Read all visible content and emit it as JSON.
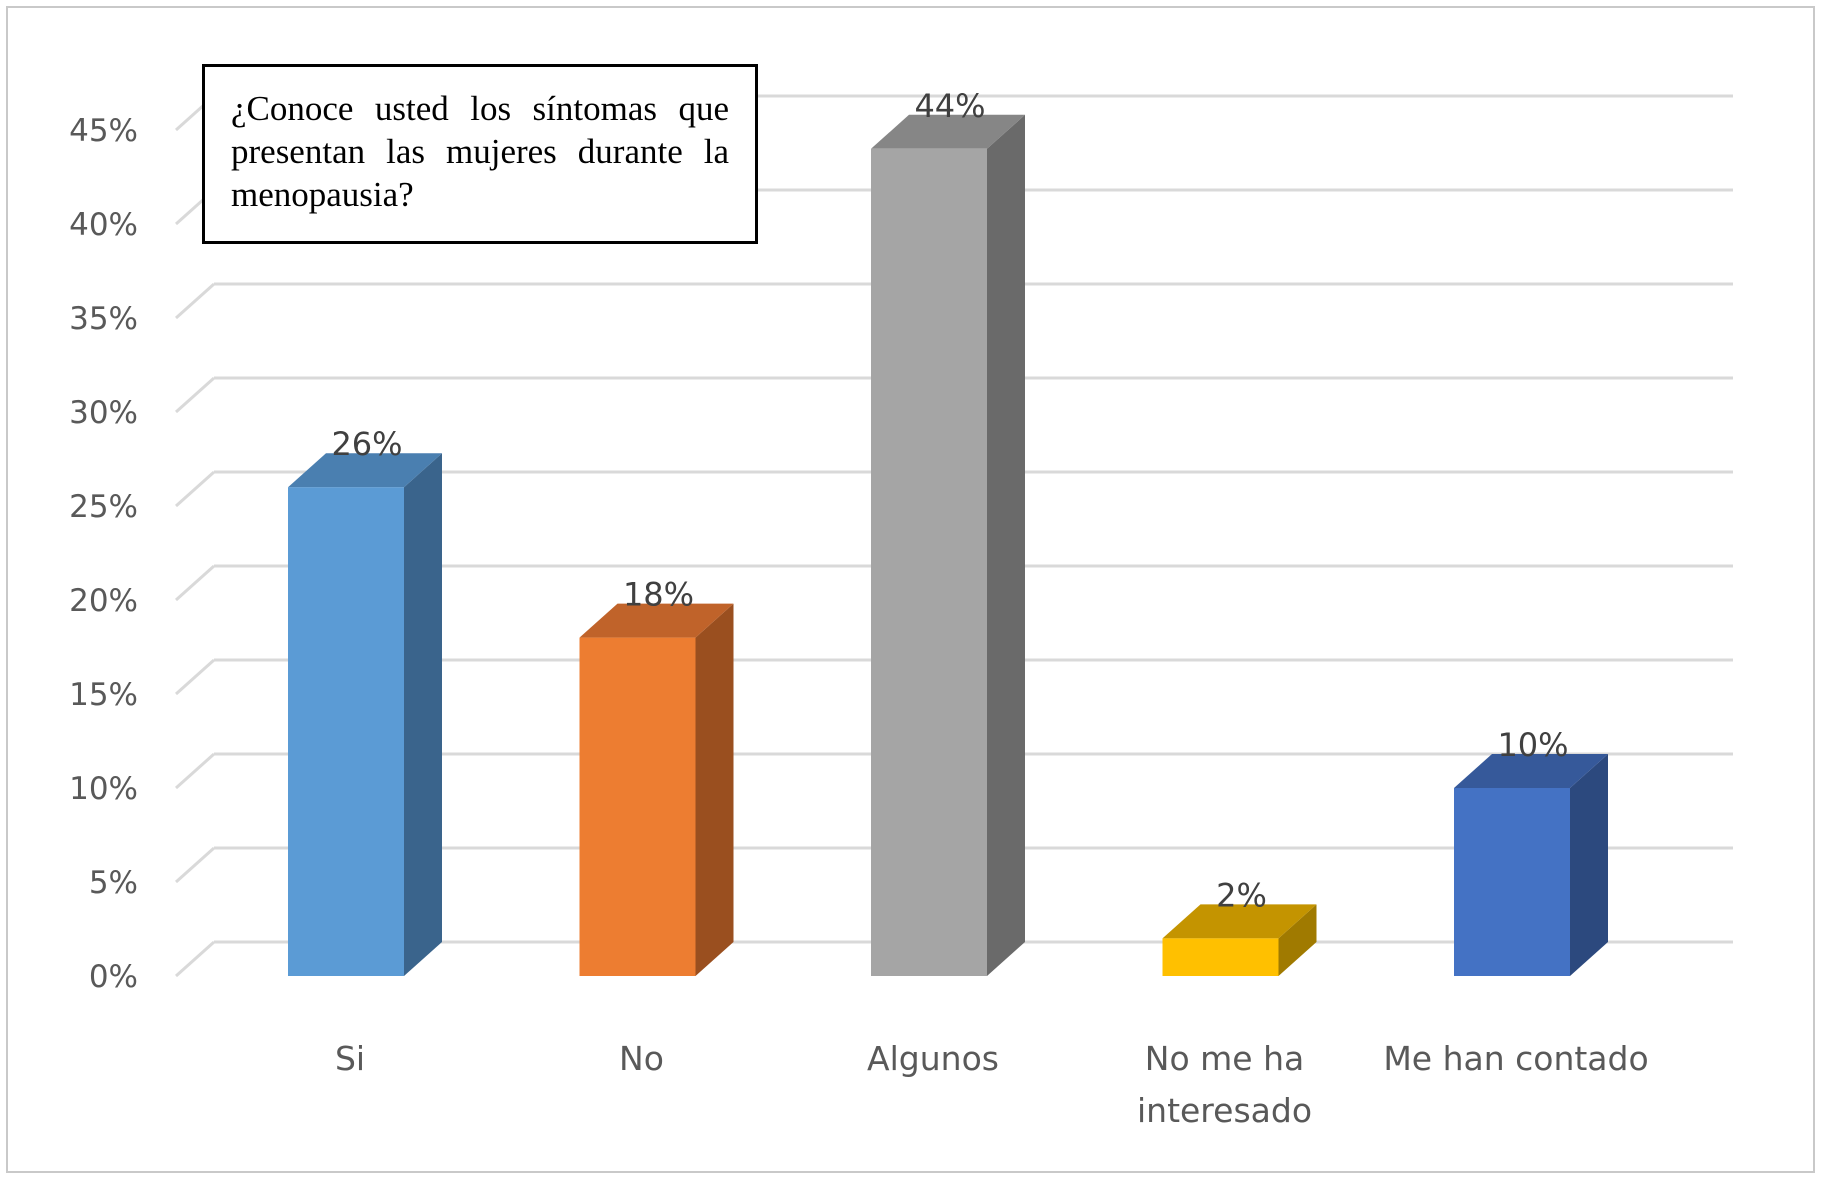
{
  "chart_data": {
    "type": "bar",
    "title": "¿Conoce usted los síntomas que presentan las mujeres durante la menopausia?",
    "categories": [
      "Si",
      "No",
      "Algunos",
      "No me ha interesado",
      "Me han contado"
    ],
    "category_lines": [
      [
        "Si"
      ],
      [
        "No"
      ],
      [
        "Algunos"
      ],
      [
        "No me ha",
        "interesado"
      ],
      [
        "Me han contado"
      ]
    ],
    "values": [
      26,
      18,
      44,
      2,
      10
    ],
    "value_labels": [
      "26%",
      "18%",
      "44%",
      "2%",
      "10%"
    ],
    "ylim": [
      0,
      45
    ],
    "yticks": [
      0,
      5,
      10,
      15,
      20,
      25,
      30,
      35,
      40,
      45
    ],
    "ytick_labels": [
      "0%",
      "5%",
      "10%",
      "15%",
      "20%",
      "25%",
      "30%",
      "35%",
      "40%",
      "45%"
    ],
    "grid": true,
    "style": "3d-column",
    "colors": [
      {
        "front": "#5b9bd5",
        "side": "#3a648c",
        "top": "#4a7fb0"
      },
      {
        "front": "#ed7d31",
        "side": "#9a4f1f",
        "top": "#c0632a"
      },
      {
        "front": "#a5a5a5",
        "side": "#6a6a6a",
        "top": "#868686"
      },
      {
        "front": "#ffc000",
        "side": "#a07a00",
        "top": "#c49400"
      },
      {
        "front": "#4472c4",
        "side": "#2c497e",
        "top": "#36599a"
      }
    ]
  }
}
